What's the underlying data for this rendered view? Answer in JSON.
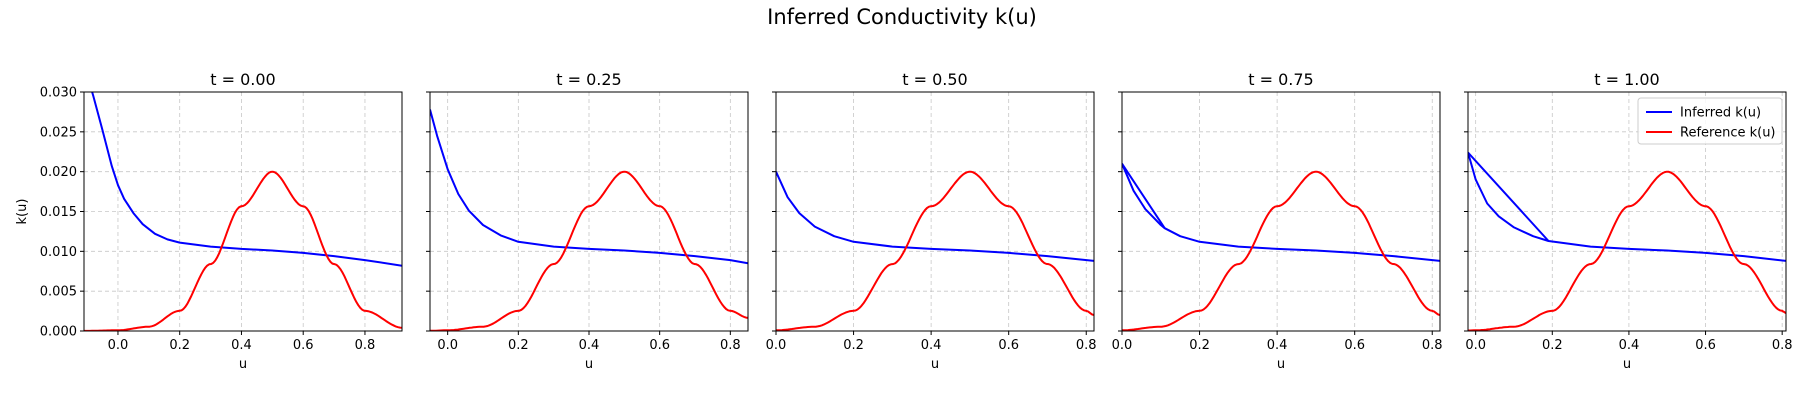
{
  "figure": {
    "suptitle": "Inferred Conductivity k(u)"
  },
  "chart_data": [
    {
      "type": "line",
      "title": "t = 0.00",
      "xlabel": "u",
      "ylabel": "k(u)",
      "xlim": [
        -0.11,
        0.92
      ],
      "ylim": [
        0,
        0.03
      ],
      "xticks": [
        0.0,
        0.2,
        0.4,
        0.6,
        0.8
      ],
      "xtick_labels": [
        "0.0",
        "0.2",
        "0.4",
        "0.6",
        "0.8"
      ],
      "yticks": [
        0,
        0.005,
        0.01,
        0.015,
        0.02,
        0.025,
        0.03
      ],
      "ytick_labels": [
        "0.000",
        "0.005",
        "0.010",
        "0.015",
        "0.020",
        "0.025",
        "0.030"
      ],
      "grid": true,
      "series": [
        {
          "name": "Inferred k(u)",
          "color": "#0000ff",
          "x": [
            -0.11,
            -0.08,
            -0.05,
            -0.02,
            0.0,
            0.02,
            0.05,
            0.08,
            0.12,
            0.16,
            0.2,
            0.3,
            0.4,
            0.5,
            0.6,
            0.7,
            0.8,
            0.92
          ],
          "y": [
            0.0335,
            0.0295,
            0.0252,
            0.0207,
            0.0183,
            0.0166,
            0.0148,
            0.0134,
            0.0122,
            0.0115,
            0.0111,
            0.0106,
            0.0103,
            0.0101,
            0.0098,
            0.0094,
            0.0089,
            0.0082
          ]
        },
        {
          "name": "Reference k(u)",
          "color": "#ff0000",
          "x": [
            -0.11,
            0.0,
            0.1,
            0.2,
            0.3,
            0.4,
            0.5,
            0.6,
            0.7,
            0.8,
            0.92
          ],
          "y": [
            1e-05,
            9e-05,
            0.00054,
            0.00253,
            0.0084,
            0.01566,
            0.02,
            0.01566,
            0.0084,
            0.00253,
            0.00041
          ]
        }
      ]
    },
    {
      "type": "line",
      "title": "t = 0.25",
      "xlabel": "u",
      "xlim": [
        -0.05,
        0.85
      ],
      "ylim": [
        0,
        0.03
      ],
      "xticks": [
        0.0,
        0.2,
        0.4,
        0.6,
        0.8
      ],
      "xtick_labels": [
        "0.0",
        "0.2",
        "0.4",
        "0.6",
        "0.8"
      ],
      "yticks": [
        0,
        0.005,
        0.01,
        0.015,
        0.02,
        0.025,
        0.03
      ],
      "grid": true,
      "series": [
        {
          "name": "Inferred k(u)",
          "color": "#0000ff",
          "x": [
            -0.05,
            -0.03,
            0.0,
            0.03,
            0.06,
            0.1,
            0.15,
            0.2,
            0.3,
            0.4,
            0.5,
            0.6,
            0.7,
            0.8,
            0.85
          ],
          "y": [
            0.0278,
            0.0245,
            0.0203,
            0.0172,
            0.0151,
            0.0133,
            0.012,
            0.0112,
            0.0106,
            0.0103,
            0.0101,
            0.0098,
            0.0094,
            0.0089,
            0.0085
          ]
        },
        {
          "name": "Reference k(u)",
          "color": "#ff0000",
          "x": [
            -0.05,
            0.0,
            0.1,
            0.2,
            0.3,
            0.4,
            0.5,
            0.6,
            0.7,
            0.8,
            0.85
          ],
          "y": [
            2e-05,
            9e-05,
            0.00054,
            0.00253,
            0.0084,
            0.01566,
            0.02,
            0.01566,
            0.0084,
            0.00253,
            0.00165
          ]
        }
      ]
    },
    {
      "type": "line",
      "title": "t = 0.50",
      "xlabel": "u",
      "xlim": [
        0.0,
        0.82
      ],
      "ylim": [
        0,
        0.03
      ],
      "xticks": [
        0.0,
        0.2,
        0.4,
        0.6,
        0.8
      ],
      "xtick_labels": [
        "0.0",
        "0.2",
        "0.4",
        "0.6",
        "0.8"
      ],
      "yticks": [
        0,
        0.005,
        0.01,
        0.015,
        0.02,
        0.025,
        0.03
      ],
      "grid": true,
      "series": [
        {
          "name": "Inferred k(u)",
          "color": "#0000ff",
          "x": [
            0.0,
            0.03,
            0.06,
            0.1,
            0.15,
            0.2,
            0.3,
            0.4,
            0.5,
            0.6,
            0.7,
            0.82
          ],
          "y": [
            0.02,
            0.0168,
            0.0148,
            0.0131,
            0.0119,
            0.0112,
            0.0106,
            0.0103,
            0.0101,
            0.0098,
            0.0094,
            0.0088
          ]
        },
        {
          "name": "Reference k(u)",
          "color": "#ff0000",
          "x": [
            0.0,
            0.1,
            0.2,
            0.3,
            0.4,
            0.5,
            0.6,
            0.7,
            0.8,
            0.82
          ],
          "y": [
            9e-05,
            0.00054,
            0.00253,
            0.0084,
            0.01566,
            0.02,
            0.01566,
            0.0084,
            0.00253,
            0.002
          ]
        }
      ]
    },
    {
      "type": "line",
      "title": "t = 0.75",
      "xlabel": "u",
      "xlim": [
        0.0,
        0.82
      ],
      "ylim": [
        0,
        0.03
      ],
      "xticks": [
        0.0,
        0.2,
        0.4,
        0.6,
        0.8
      ],
      "xtick_labels": [
        "0.0",
        "0.2",
        "0.4",
        "0.6",
        "0.8"
      ],
      "yticks": [
        0,
        0.005,
        0.01,
        0.015,
        0.02,
        0.025,
        0.03
      ],
      "grid": true,
      "series": [
        {
          "name": "Inferred k(u)",
          "color": "#0000ff",
          "x": [
            0.0,
            0.03,
            0.06,
            0.1,
            0.11,
            0.15,
            0.2,
            0.3,
            0.4,
            0.5,
            0.6,
            0.7,
            0.82
          ],
          "y": [
            0.021,
            0.0176,
            0.0153,
            0.0133,
            0.0129,
            0.0119,
            0.0112,
            0.0106,
            0.0103,
            0.0101,
            0.0098,
            0.0094,
            0.0088
          ]
        },
        {
          "name": "Inferred k(u)",
          "color": "#0000ff",
          "x": [
            0.0,
            0.11
          ],
          "y": [
            0.021,
            0.0129
          ]
        },
        {
          "name": "Reference k(u)",
          "color": "#ff0000",
          "x": [
            0.0,
            0.1,
            0.2,
            0.3,
            0.4,
            0.5,
            0.6,
            0.7,
            0.8,
            0.82
          ],
          "y": [
            9e-05,
            0.00054,
            0.00253,
            0.0084,
            0.01566,
            0.02,
            0.01566,
            0.0084,
            0.00253,
            0.002
          ]
        }
      ]
    },
    {
      "type": "line",
      "title": "t = 1.00",
      "xlabel": "u",
      "xlim": [
        -0.02,
        0.81
      ],
      "ylim": [
        0,
        0.03
      ],
      "xticks": [
        0.0,
        0.2,
        0.4,
        0.6,
        0.8
      ],
      "xtick_labels": [
        "0.0",
        "0.2",
        "0.4",
        "0.6",
        "0.8"
      ],
      "yticks": [
        0,
        0.005,
        0.01,
        0.015,
        0.02,
        0.025,
        0.03
      ],
      "grid": true,
      "legend": "top-right",
      "legend_entries": [
        {
          "label": "Inferred k(u)",
          "color": "#0000ff"
        },
        {
          "label": "Reference k(u)",
          "color": "#ff0000"
        }
      ],
      "series": [
        {
          "name": "Inferred k(u)",
          "color": "#0000ff",
          "x": [
            -0.02,
            0.0,
            0.03,
            0.06,
            0.1,
            0.15,
            0.19,
            0.3,
            0.4,
            0.5,
            0.6,
            0.7,
            0.81
          ],
          "y": [
            0.0224,
            0.019,
            0.016,
            0.0144,
            0.013,
            0.0119,
            0.0113,
            0.0106,
            0.0103,
            0.0101,
            0.0098,
            0.0094,
            0.0088
          ]
        },
        {
          "name": "Inferred k(u)",
          "color": "#0000ff",
          "x": [
            -0.02,
            0.19
          ],
          "y": [
            0.0224,
            0.0113
          ]
        },
        {
          "name": "Reference k(u)",
          "color": "#ff0000",
          "x": [
            -0.02,
            0.0,
            0.1,
            0.2,
            0.3,
            0.4,
            0.5,
            0.6,
            0.7,
            0.8,
            0.81
          ],
          "y": [
            6e-05,
            9e-05,
            0.00054,
            0.00253,
            0.0084,
            0.01566,
            0.02,
            0.01566,
            0.0084,
            0.00253,
            0.00224
          ]
        }
      ]
    }
  ]
}
